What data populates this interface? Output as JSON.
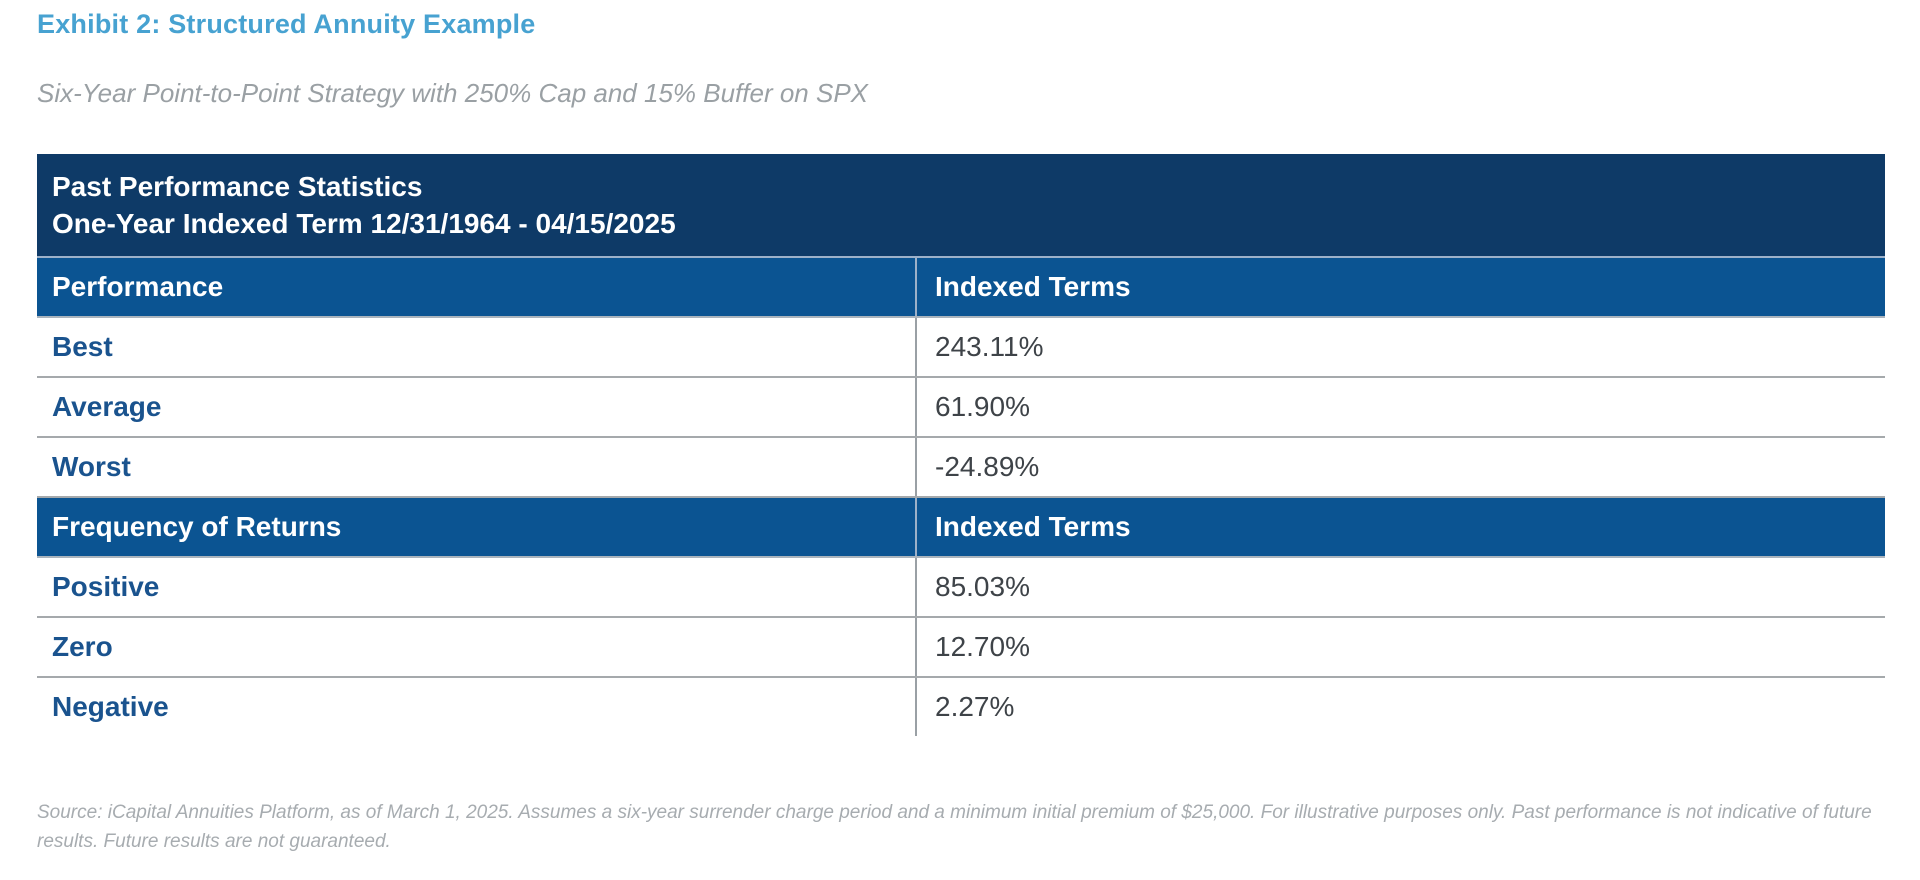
{
  "exhibit": {
    "title": "Exhibit 2: Structured Annuity Example",
    "subtitle": "Six-Year Point-to-Point Strategy with 250% Cap and 15% Buffer on SPX"
  },
  "table": {
    "header": {
      "line1": "Past Performance Statistics",
      "line2": "One-Year Indexed Term 12/31/1964 - 04/15/2025"
    },
    "sections": [
      {
        "col1": "Performance",
        "col2": "Indexed Terms",
        "rows": [
          {
            "label": "Best",
            "value": "243.11%"
          },
          {
            "label": "Average",
            "value": "61.90%"
          },
          {
            "label": "Worst",
            "value": "-24.89%"
          }
        ]
      },
      {
        "col1": "Frequency of Returns",
        "col2": "Indexed Terms",
        "rows": [
          {
            "label": "Positive",
            "value": "85.03%"
          },
          {
            "label": "Zero",
            "value": "12.70%"
          },
          {
            "label": "Negative",
            "value": "2.27%"
          }
        ]
      }
    ]
  },
  "footnote": "Source: iCapital Annuities Platform, as of March 1, 2025. Assumes a six-year surrender charge period and a minimum initial premium of $25,000. For illustrative purposes only. Past performance is not indicative of future results. Future results are not guaranteed.",
  "colors": {
    "title_blue": "#47a2d1",
    "header_navy": "#0e3a67",
    "band_blue": "#0b5492",
    "label_blue": "#1a538e",
    "value_gray": "#3e4348",
    "subtitle_gray": "#9aa0a4",
    "footnote_gray": "#a7acb0"
  },
  "chart_data": {
    "type": "table",
    "title": "Past Performance Statistics — One-Year Indexed Term 12/31/1964 - 04/15/2025",
    "sections": [
      {
        "columns": [
          "Performance",
          "Indexed Terms"
        ],
        "rows": [
          [
            "Best",
            243.11
          ],
          [
            "Average",
            61.9
          ],
          [
            "Worst",
            -24.89
          ]
        ]
      },
      {
        "columns": [
          "Frequency of Returns",
          "Indexed Terms"
        ],
        "rows": [
          [
            "Positive",
            85.03
          ],
          [
            "Zero",
            12.7
          ],
          [
            "Negative",
            2.27
          ]
        ]
      }
    ],
    "units": "percent"
  }
}
